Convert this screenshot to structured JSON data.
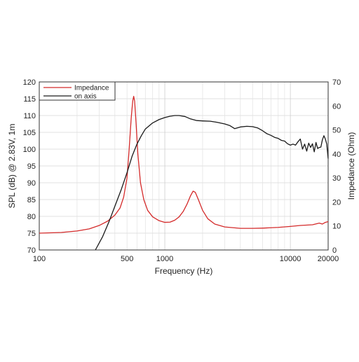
{
  "chart_data": {
    "type": "line",
    "xlabel": "Frequency (Hz)",
    "ylabel_left": "SPL (dB) @ 2.83V, 1m",
    "ylabel_right": "Impedance (Ohm)",
    "x_scale": "log",
    "xlim": [
      100,
      20000
    ],
    "ylim_left": [
      70,
      120
    ],
    "ylim_right": [
      0,
      70
    ],
    "x_ticks": [
      100,
      500,
      1000,
      10000,
      20000
    ],
    "x_tick_labels": [
      "100",
      "500",
      "1000",
      "10000",
      "20000"
    ],
    "y_left_ticks": [
      70,
      75,
      80,
      85,
      90,
      95,
      100,
      105,
      110,
      115,
      120
    ],
    "y_left_tick_labels": [
      "70",
      "75",
      "80",
      "85",
      "90",
      "95",
      "100",
      "105",
      "110",
      "115",
      "120"
    ],
    "y_right_ticks": [
      0,
      10,
      20,
      30,
      40,
      50,
      60,
      70
    ],
    "y_right_tick_labels": [
      "0",
      "10",
      "20",
      "30",
      "40",
      "50",
      "60",
      "70"
    ],
    "grid": true,
    "legend_position": "top-left",
    "series": [
      {
        "name": "Impedance",
        "color": "#d42a2a",
        "axis": "right",
        "points": [
          [
            100,
            7.0
          ],
          [
            150,
            7.3
          ],
          [
            200,
            7.9
          ],
          [
            250,
            8.8
          ],
          [
            300,
            10.2
          ],
          [
            350,
            12.0
          ],
          [
            400,
            14.5
          ],
          [
            440,
            17.5
          ],
          [
            470,
            22.0
          ],
          [
            500,
            30.0
          ],
          [
            520,
            42.0
          ],
          [
            540,
            55.0
          ],
          [
            555,
            62.0
          ],
          [
            565,
            64.0
          ],
          [
            575,
            62.0
          ],
          [
            590,
            53.0
          ],
          [
            610,
            40.0
          ],
          [
            640,
            28.0
          ],
          [
            680,
            21.0
          ],
          [
            730,
            16.5
          ],
          [
            800,
            13.8
          ],
          [
            900,
            12.2
          ],
          [
            1000,
            11.5
          ],
          [
            1100,
            11.6
          ],
          [
            1200,
            12.4
          ],
          [
            1300,
            13.8
          ],
          [
            1400,
            16.0
          ],
          [
            1500,
            19.0
          ],
          [
            1600,
            22.5
          ],
          [
            1680,
            24.5
          ],
          [
            1750,
            24.0
          ],
          [
            1850,
            21.0
          ],
          [
            2000,
            16.5
          ],
          [
            2200,
            13.0
          ],
          [
            2500,
            10.8
          ],
          [
            3000,
            9.6
          ],
          [
            4000,
            9.0
          ],
          [
            5000,
            9.0
          ],
          [
            6000,
            9.1
          ],
          [
            8000,
            9.4
          ],
          [
            10000,
            9.8
          ],
          [
            12000,
            10.2
          ],
          [
            15000,
            10.5
          ],
          [
            17000,
            11.2
          ],
          [
            18000,
            10.8
          ],
          [
            19000,
            11.5
          ],
          [
            20000,
            11.8
          ]
        ]
      },
      {
        "name": "on axis",
        "color": "#1a1a1a",
        "axis": "left",
        "points": [
          [
            280,
            70.0
          ],
          [
            320,
            74.0
          ],
          [
            360,
            78.5
          ],
          [
            400,
            83.0
          ],
          [
            450,
            88.0
          ],
          [
            500,
            93.0
          ],
          [
            550,
            98.0
          ],
          [
            600,
            101.5
          ],
          [
            650,
            104.0
          ],
          [
            700,
            106.0
          ],
          [
            800,
            107.8
          ],
          [
            900,
            108.8
          ],
          [
            1000,
            109.4
          ],
          [
            1100,
            109.8
          ],
          [
            1200,
            110.0
          ],
          [
            1300,
            110.0
          ],
          [
            1450,
            109.7
          ],
          [
            1600,
            109.0
          ],
          [
            1800,
            108.5
          ],
          [
            2000,
            108.4
          ],
          [
            2300,
            108.3
          ],
          [
            2600,
            108.0
          ],
          [
            3000,
            107.5
          ],
          [
            3300,
            107.0
          ],
          [
            3600,
            106.1
          ],
          [
            4000,
            106.6
          ],
          [
            4500,
            106.8
          ],
          [
            5000,
            106.7
          ],
          [
            5500,
            106.3
          ],
          [
            6000,
            105.5
          ],
          [
            6500,
            104.6
          ],
          [
            7000,
            104.1
          ],
          [
            7500,
            103.5
          ],
          [
            8000,
            103.2
          ],
          [
            8500,
            102.6
          ],
          [
            9000,
            102.4
          ],
          [
            9500,
            101.6
          ],
          [
            10000,
            101.2
          ],
          [
            10500,
            101.5
          ],
          [
            11000,
            101.2
          ],
          [
            11500,
            102.2
          ],
          [
            12000,
            103.0
          ],
          [
            12500,
            100.0
          ],
          [
            13000,
            101.5
          ],
          [
            13500,
            99.4
          ],
          [
            14000,
            101.8
          ],
          [
            14500,
            100.5
          ],
          [
            15000,
            101.6
          ],
          [
            15500,
            99.2
          ],
          [
            16000,
            102.0
          ],
          [
            16500,
            100.2
          ],
          [
            17000,
            100.5
          ],
          [
            17500,
            100.6
          ],
          [
            18000,
            102.8
          ],
          [
            18500,
            104.0
          ],
          [
            19000,
            103.0
          ],
          [
            19500,
            101.5
          ],
          [
            20000,
            97.2
          ]
        ]
      }
    ]
  }
}
